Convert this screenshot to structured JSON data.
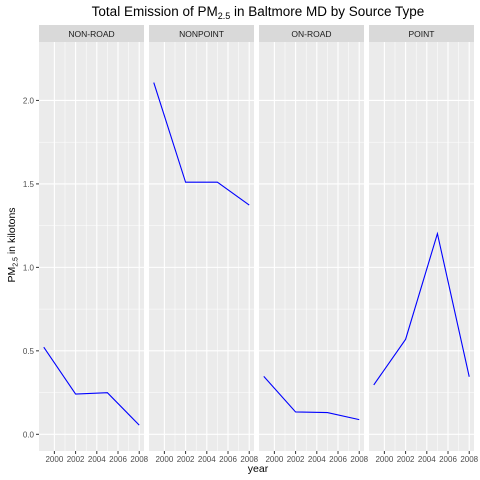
{
  "chart_data": {
    "type": "line",
    "title": {
      "prefix": "Total Emission of PM",
      "subscript": "2.5",
      "suffix": " in Baltmore MD by Source Type"
    },
    "xlabel": "year",
    "ylabel": {
      "prefix": "PM",
      "subscript": "2.5",
      "suffix": " in kilotons"
    },
    "x": [
      1999,
      2002,
      2005,
      2008
    ],
    "xlim": [
      1998.55,
      2008.45
    ],
    "ylim": [
      -0.1,
      2.35
    ],
    "x_ticks": [
      2000,
      2002,
      2004,
      2006,
      2008
    ],
    "y_ticks": [
      0.0,
      0.5,
      1.0,
      1.5,
      2.0
    ],
    "x_tick_labels": [
      "2000",
      "2002",
      "2004",
      "2006",
      "2008"
    ],
    "y_tick_labels": [
      "0.0",
      "0.5",
      "1.0",
      "1.5",
      "2.0"
    ],
    "facets": [
      {
        "label": "NON-ROAD",
        "values": [
          0.522,
          0.241,
          0.249,
          0.055
        ]
      },
      {
        "label": "NONPOINT",
        "values": [
          2.107,
          1.51,
          1.51,
          1.373
        ]
      },
      {
        "label": "ON-ROAD",
        "values": [
          0.347,
          0.134,
          0.13,
          0.088
        ]
      },
      {
        "label": "POINT",
        "values": [
          0.296,
          0.569,
          1.202,
          0.345
        ]
      }
    ],
    "line_color": "#0000ff",
    "panel_background": "#ebebeb",
    "strip_background": "#d9d9d9",
    "grid": true,
    "legend": "none"
  }
}
